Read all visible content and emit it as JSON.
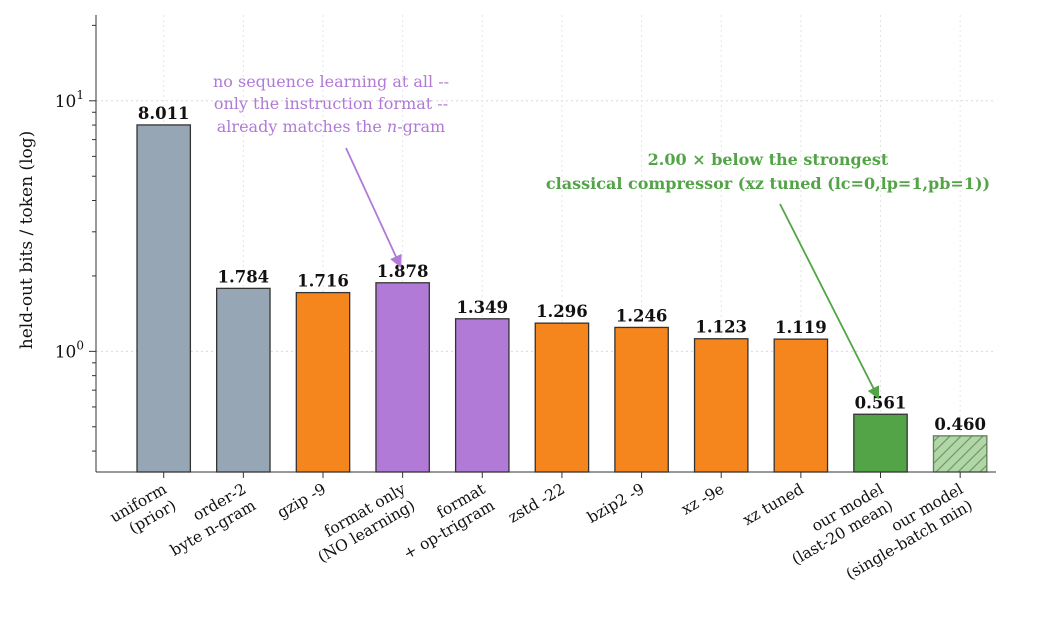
{
  "chart_data": {
    "type": "bar",
    "ylabel": "held-out bits / token (log)",
    "yscale": "log",
    "ylim": [
      0.33,
      22
    ],
    "grid": true,
    "y_ticks": [
      {
        "value": 10,
        "base": "10",
        "exp": "1"
      },
      {
        "value": 1,
        "base": "10",
        "exp": "0"
      }
    ],
    "bars": [
      {
        "category": [
          "uniform",
          "(prior)"
        ],
        "value": 8.011,
        "label": "8.011",
        "color": "#97a6b5"
      },
      {
        "category": [
          "order-2",
          "byte n-gram"
        ],
        "value": 1.784,
        "label": "1.784",
        "color": "#97a6b5"
      },
      {
        "category": [
          "gzip -9"
        ],
        "value": 1.716,
        "label": "1.716",
        "color": "#f5861d"
      },
      {
        "category": [
          "format only",
          "(NO learning)"
        ],
        "value": 1.878,
        "label": "1.878",
        "color": "#b07ad6"
      },
      {
        "category": [
          "format",
          "+ op-trigram"
        ],
        "value": 1.349,
        "label": "1.349",
        "color": "#b07ad6"
      },
      {
        "category": [
          "zstd -22"
        ],
        "value": 1.296,
        "label": "1.296",
        "color": "#f5861d"
      },
      {
        "category": [
          "bzip2 -9"
        ],
        "value": 1.246,
        "label": "1.246",
        "color": "#f5861d"
      },
      {
        "category": [
          "xz -9e"
        ],
        "value": 1.123,
        "label": "1.123",
        "color": "#f5861d"
      },
      {
        "category": [
          "xz tuned"
        ],
        "value": 1.119,
        "label": "1.119",
        "color": "#f5861d"
      },
      {
        "category": [
          "our model",
          "(last-20 mean)"
        ],
        "value": 0.561,
        "label": "0.561",
        "color": "#52a447"
      },
      {
        "category": [
          "our model",
          "(single-batch min)"
        ],
        "value": 0.46,
        "label": "0.460",
        "color": "#b2d6a8",
        "hatched": true
      }
    ],
    "annotations": [
      {
        "lines": [
          "no sequence learning at all --",
          "only the instruction format --",
          "already matches the n-gram"
        ],
        "color": "#b07ad6",
        "points_to_bar": 3
      },
      {
        "lines": [
          "2.00 × below the strongest",
          "classical compressor (xz tuned (lc=0,lp=1,pb=1))"
        ],
        "color": "#52a447",
        "points_to_bar": 9
      }
    ]
  }
}
